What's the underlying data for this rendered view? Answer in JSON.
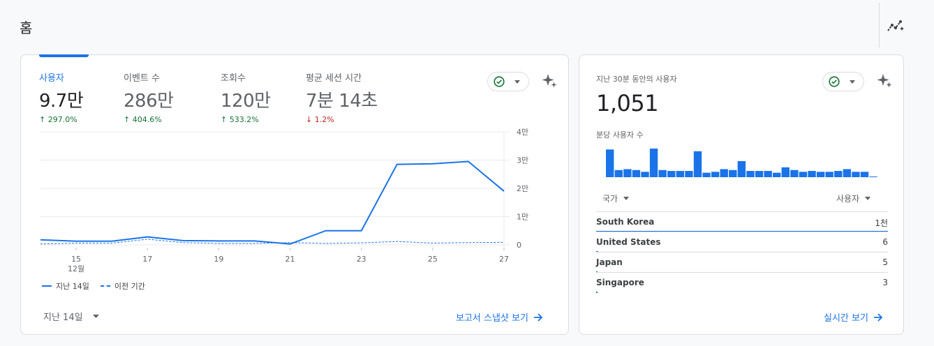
{
  "page": {
    "title": "홈"
  },
  "colors": {
    "accent": "#1a73e8",
    "up": "#137333",
    "down": "#c5221f",
    "border": "#dadce0",
    "muted": "#5f6368"
  },
  "overview": {
    "metrics": [
      {
        "label": "사용자",
        "value": "9.7만",
        "change": "297.0%",
        "direction": "up",
        "active": true
      },
      {
        "label": "이벤트 수",
        "value": "286만",
        "change": "404.6%",
        "direction": "up",
        "active": false
      },
      {
        "label": "조회수",
        "value": "120만",
        "change": "533.2%",
        "direction": "up",
        "active": false
      },
      {
        "label": "평균 세션 시간",
        "value": "7분 14초",
        "change": "1.2%",
        "direction": "down",
        "active": false
      }
    ],
    "legend": {
      "current": "지난 14일",
      "previous": "이전 기간"
    },
    "date_range": "지난 14일",
    "report_link": "보고서 스냅샷 보기",
    "icons": {
      "status": "check-circle-icon",
      "insights": "sparkle-icon",
      "next": "arrow-right-icon"
    }
  },
  "chart_data": {
    "type": "line",
    "x": [
      "12월 14일",
      "12월 15일",
      "12월 16일",
      "12월 17일",
      "12월 18일",
      "12월 19일",
      "12월 20일",
      "12월 21일",
      "12월 22일",
      "12월 23일",
      "12월 24일",
      "12월 25일",
      "12월 26일",
      "12월 27일"
    ],
    "x_tick_labels": [
      {
        "label": "15",
        "sub": "12월",
        "index": 1
      },
      {
        "label": "17",
        "index": 3
      },
      {
        "label": "19",
        "index": 5
      },
      {
        "label": "21",
        "index": 7
      },
      {
        "label": "23",
        "index": 9
      },
      {
        "label": "25",
        "index": 11
      },
      {
        "label": "27",
        "index": 13
      }
    ],
    "y_ticks": [
      {
        "label": "0",
        "value": 0
      },
      {
        "label": "1만",
        "value": 10000
      },
      {
        "label": "2만",
        "value": 20000
      },
      {
        "label": "3만",
        "value": 30000
      },
      {
        "label": "4만",
        "value": 40000
      }
    ],
    "ylim": [
      0,
      40000
    ],
    "grid": true,
    "legend_position": "bottom-left",
    "series": [
      {
        "name": "지난 14일",
        "style": "solid",
        "values": [
          1800,
          1300,
          1300,
          2800,
          1500,
          1400,
          1400,
          300,
          5000,
          5000,
          28500,
          28700,
          29500,
          19000
        ]
      },
      {
        "name": "이전 기간",
        "style": "dashed",
        "values": [
          300,
          600,
          600,
          2000,
          800,
          500,
          500,
          800,
          500,
          700,
          1200,
          600,
          800,
          900
        ]
      }
    ]
  },
  "realtime": {
    "label": "지난 30분 동안의 사용자",
    "value": "1,051",
    "sub_label": "분당 사용자 수",
    "minute_bars": [
      31,
      8,
      9,
      8,
      6,
      32,
      8,
      7,
      7,
      7,
      29,
      5,
      6,
      9,
      8,
      18,
      7,
      7,
      7,
      5,
      11,
      8,
      6,
      7,
      6,
      6,
      7,
      9,
      6,
      6,
      0.5
    ],
    "columns": {
      "country": "국가",
      "users": "사용자"
    },
    "rows": [
      {
        "country": "South Korea",
        "count": "1천",
        "share": 1.0
      },
      {
        "country": "United States",
        "count": "6",
        "share": 0.006
      },
      {
        "country": "Japan",
        "count": "5",
        "share": 0.005
      },
      {
        "country": "Singapore",
        "count": "3",
        "share": 0.003
      }
    ],
    "link": "실시간 보기"
  }
}
